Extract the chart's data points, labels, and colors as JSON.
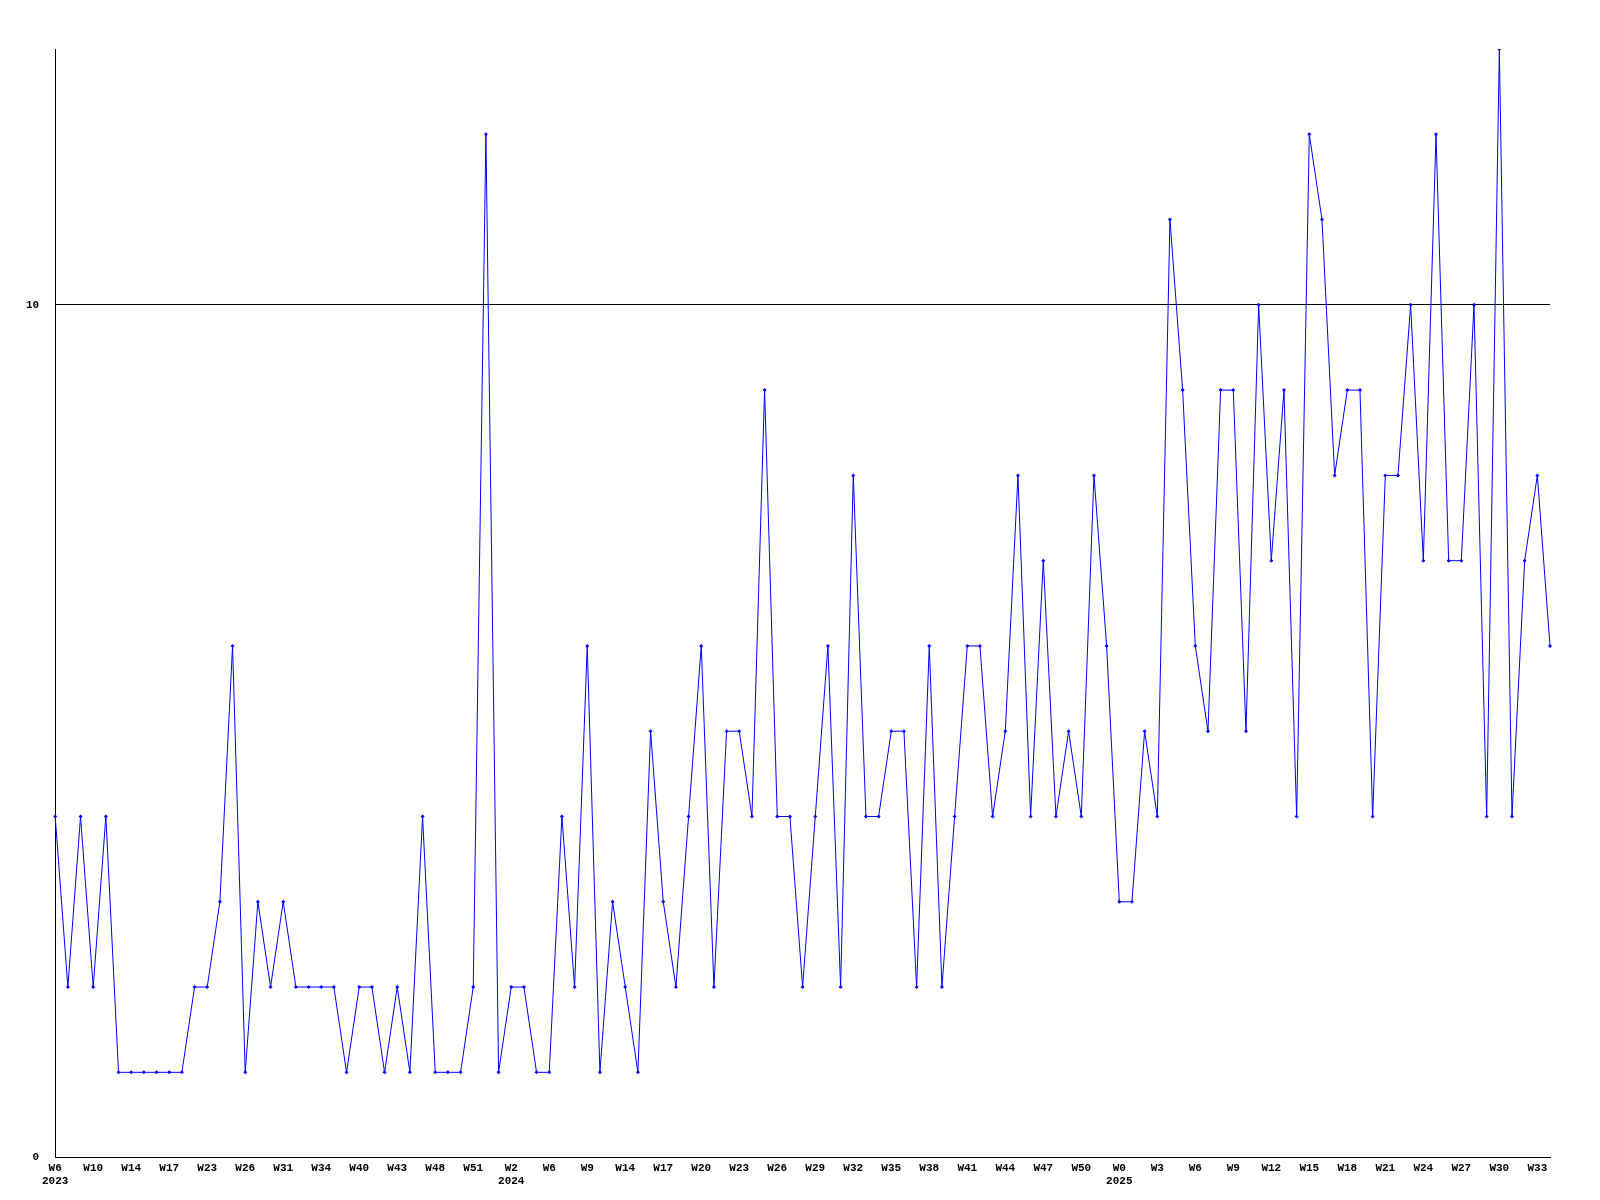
{
  "chart_data": {
    "type": "line",
    "categories": [
      "W6\n2023",
      null,
      null,
      "W10",
      null,
      null,
      "W14",
      null,
      null,
      "W17",
      null,
      null,
      "W23",
      null,
      null,
      "W26",
      null,
      null,
      "W31",
      null,
      null,
      "W34",
      null,
      null,
      "W40",
      null,
      null,
      "W43",
      null,
      null,
      "W48",
      null,
      null,
      "W51",
      null,
      null,
      "W2\n2024",
      null,
      null,
      "W6",
      null,
      null,
      "W9",
      null,
      null,
      "W14",
      null,
      null,
      "W17",
      null,
      null,
      "W20",
      null,
      null,
      "W23",
      null,
      null,
      "W26",
      null,
      null,
      "W29",
      null,
      null,
      "W32",
      null,
      null,
      "W35",
      null,
      null,
      "W38",
      null,
      null,
      "W41",
      null,
      null,
      "W44",
      null,
      null,
      "W47",
      null,
      null,
      "W50",
      null,
      null,
      "W0\n2025",
      null,
      null,
      "W3",
      null,
      null,
      "W6",
      null,
      null,
      "W9",
      null,
      null,
      "W12",
      null,
      null,
      "W15",
      null,
      null,
      "W18",
      null,
      null,
      "W21",
      null,
      null,
      "W24",
      null,
      null,
      "W27",
      null,
      null,
      "W30",
      null,
      null,
      "W33",
      null
    ],
    "series": [
      {
        "color": "#0000ff",
        "values": [
          4,
          2,
          4,
          2,
          4,
          1,
          1,
          1,
          1,
          1,
          1,
          2,
          2,
          3,
          6,
          1,
          3,
          2,
          3,
          2,
          2,
          2,
          2,
          1,
          2,
          2,
          1,
          2,
          1,
          4,
          1,
          1,
          1,
          2,
          12,
          1,
          2,
          2,
          1,
          1,
          4,
          2,
          6,
          1,
          3,
          2,
          1,
          5,
          3,
          2,
          4,
          6,
          2,
          5,
          5,
          4,
          9,
          4,
          4,
          2,
          4,
          6,
          2,
          8,
          4,
          4,
          5,
          5,
          2,
          6,
          2,
          4,
          6,
          6,
          4,
          5,
          8,
          4,
          7,
          4,
          5,
          4,
          8,
          6,
          3,
          3,
          5,
          4,
          11,
          9,
          6,
          5,
          9,
          9,
          5,
          10,
          7,
          9,
          4,
          12,
          11,
          8,
          9,
          9,
          4,
          8,
          8,
          10,
          7,
          12,
          7,
          7,
          10,
          4,
          13,
          4,
          7,
          8,
          6
        ]
      }
    ],
    "ylim": [
      0,
      13
    ],
    "yticks": [
      0,
      10
    ],
    "grid": "y",
    "legend": false,
    "marker": "diamond",
    "line_style": "solid"
  }
}
